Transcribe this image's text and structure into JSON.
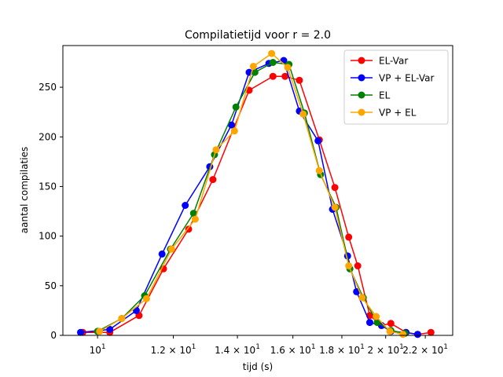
{
  "chart_data": {
    "type": "line",
    "title": "Compilatietijd voor r = 2.0",
    "xlabel": "tijd (s)",
    "ylabel": "aantal compilaties",
    "xscale": "log",
    "xlim": [
      9.2,
      23.5
    ],
    "ylim": [
      0,
      292
    ],
    "grid": false,
    "legend_position": "top-right",
    "xticks": [
      {
        "value": 10,
        "base": "10",
        "exp": "1"
      },
      {
        "value": 12,
        "base": "1.2 × 10",
        "exp": "1"
      },
      {
        "value": 14,
        "base": "1.4 × 10",
        "exp": "1"
      },
      {
        "value": 16,
        "base": "1.6 × 10",
        "exp": "1"
      },
      {
        "value": 18,
        "base": "1.8 × 10",
        "exp": "1"
      },
      {
        "value": 20,
        "base": "2 × 10",
        "exp": "1"
      },
      {
        "value": 22,
        "base": "2.2 × 10",
        "exp": "1"
      }
    ],
    "yticks": [
      0,
      50,
      100,
      150,
      200,
      250
    ],
    "series": [
      {
        "name": "EL-Var",
        "color": "#ff0000",
        "x": [
          9.65,
          10.3,
          11.05,
          11.72,
          12.45,
          13.2,
          14.4,
          15.25,
          15.7,
          16.25,
          17.05,
          17.7,
          18.3,
          18.7,
          19.25,
          19.8,
          20.25,
          21.0,
          21.6,
          22.3
        ],
        "y": [
          3,
          3,
          20,
          67,
          107,
          157,
          247,
          261,
          261,
          257,
          197,
          149,
          99,
          70,
          20,
          10,
          12,
          3,
          1,
          3
        ]
      },
      {
        "name": "VP + EL-Var",
        "color": "#0000ff",
        "x": [
          9.6,
          10.3,
          10.98,
          11.68,
          12.35,
          13.1,
          13.8,
          14.4,
          15.1,
          15.65,
          16.25,
          17.0,
          17.6,
          18.25,
          18.65,
          19.25,
          19.8,
          20.25,
          21.0,
          21.6
        ],
        "y": [
          3,
          6,
          25,
          82,
          131,
          170,
          212,
          265,
          274,
          277,
          226,
          196,
          127,
          80,
          44,
          13,
          10,
          4,
          3,
          1
        ]
      },
      {
        "name": "EL",
        "color": "#008000",
        "x": [
          10.0,
          10.6,
          11.2,
          11.92,
          12.6,
          13.25,
          13.95,
          14.6,
          15.25,
          15.85,
          16.45,
          17.1,
          17.75,
          18.35,
          18.95,
          19.6,
          20.25,
          20.95
        ],
        "y": [
          4,
          17,
          40,
          87,
          123,
          182,
          230,
          265,
          275,
          273,
          224,
          162,
          129,
          67,
          38,
          13,
          5,
          2
        ]
      },
      {
        "name": "VP + EL",
        "color": "#ffa500",
        "x": [
          10.05,
          10.6,
          11.25,
          11.95,
          12.65,
          13.3,
          13.9,
          14.55,
          15.2,
          15.8,
          16.4,
          17.05,
          17.7,
          18.3,
          18.9,
          19.55,
          20.2,
          20.85
        ],
        "y": [
          4,
          17,
          37,
          87,
          117,
          187,
          206,
          271,
          284,
          270,
          223,
          166,
          129,
          70,
          38,
          19,
          4,
          1
        ]
      }
    ]
  }
}
